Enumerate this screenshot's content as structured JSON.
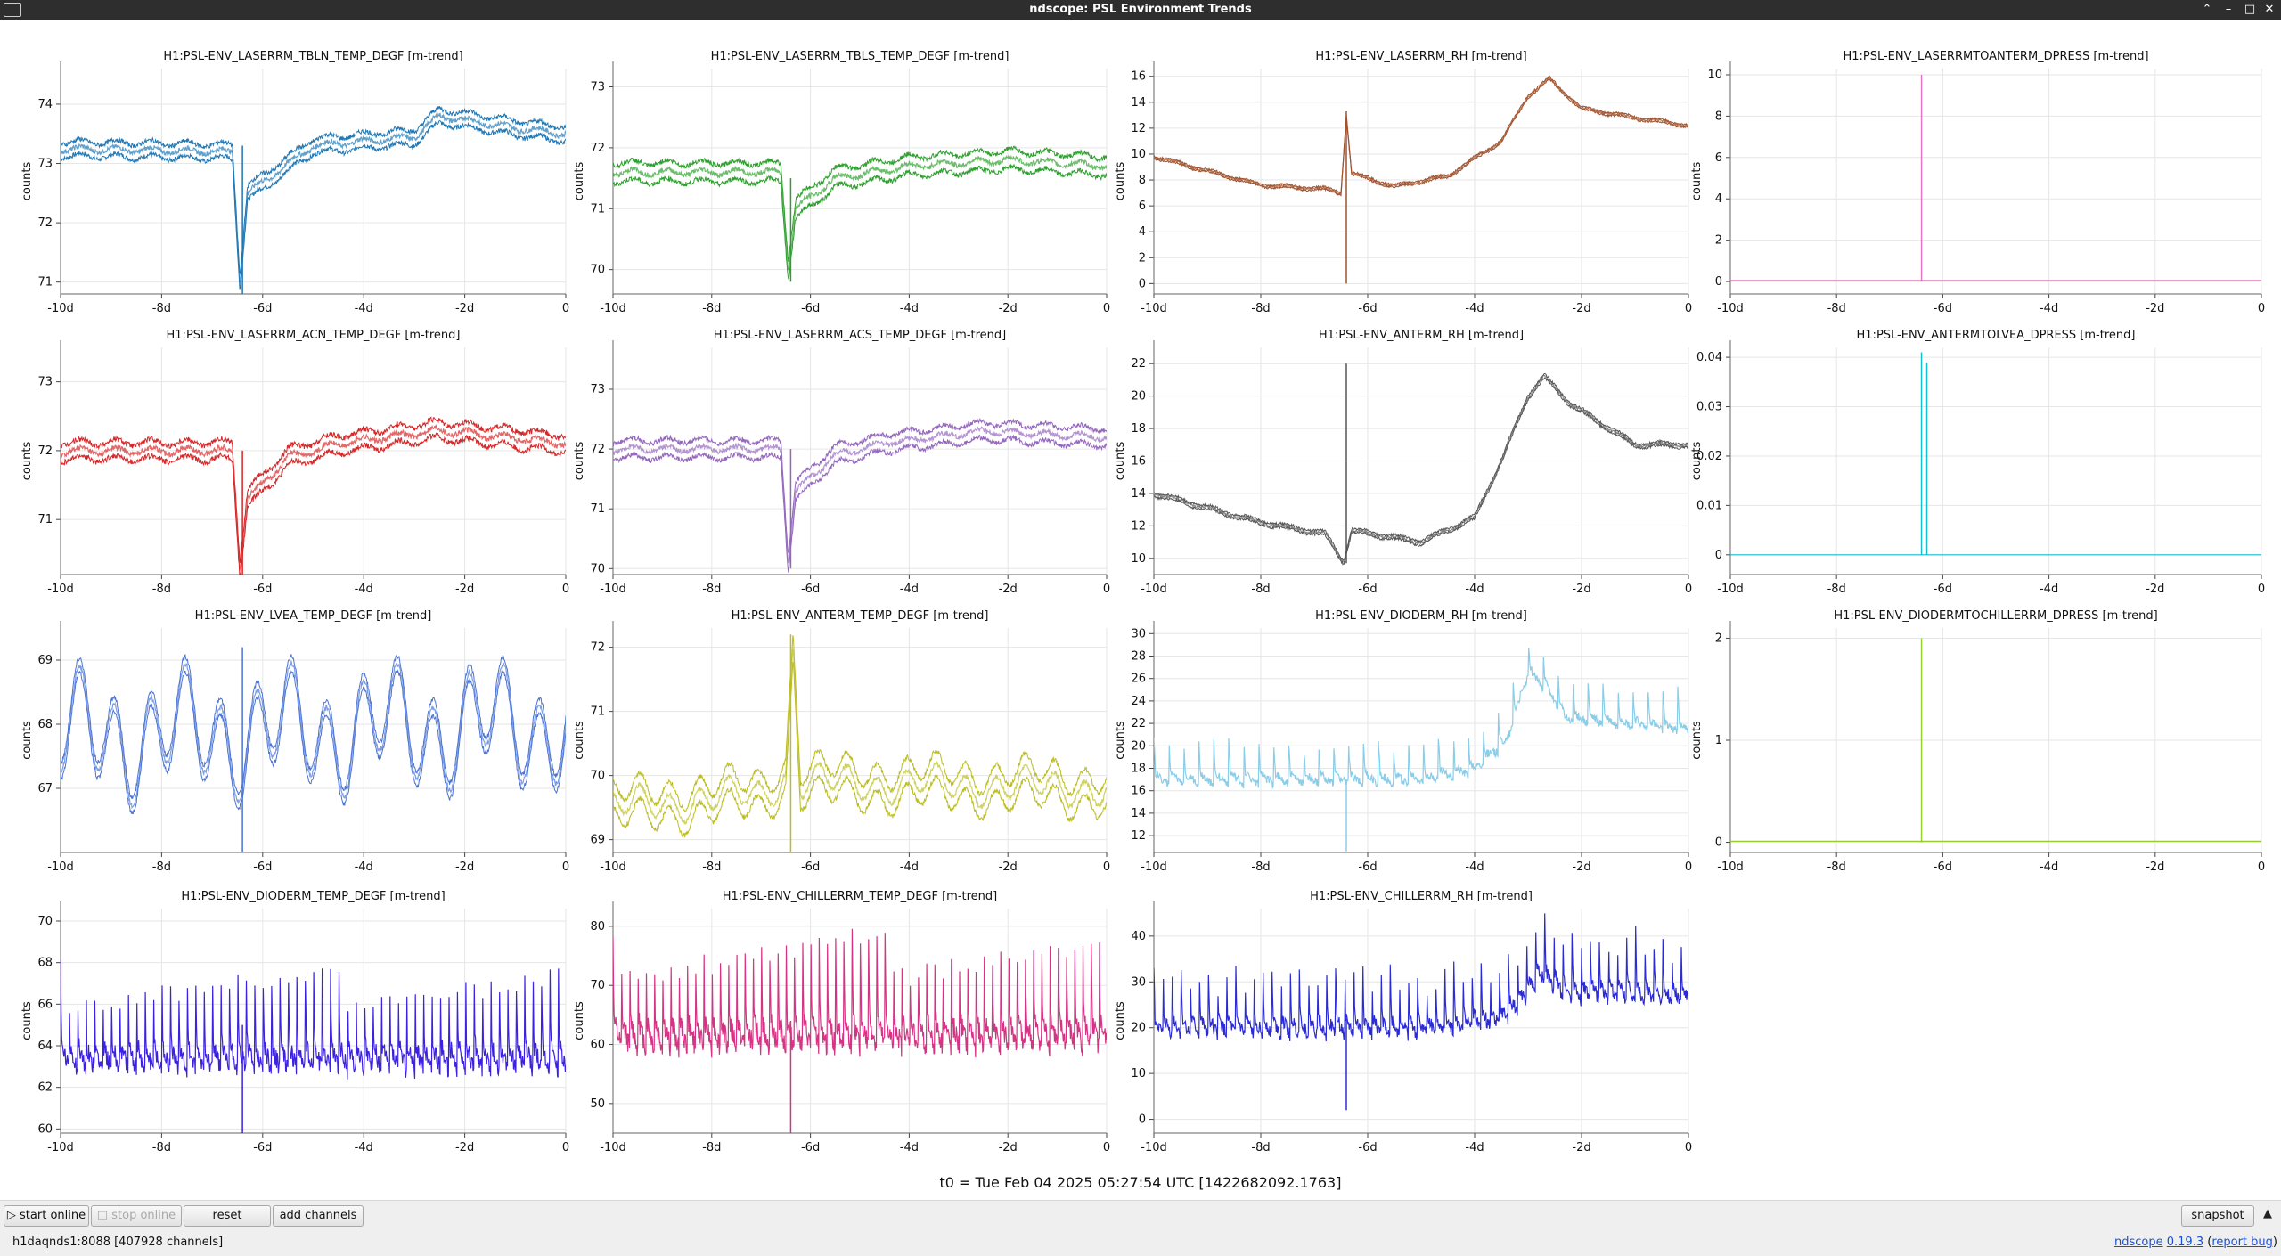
{
  "window": {
    "title": "ndscope: PSL Environment Trends"
  },
  "t0_label": "t0 = Tue Feb 04 2025 05:27:54 UTC [1422682092.1763]",
  "buttons": {
    "start_online": "start online",
    "stop_online": "stop online",
    "reset": "reset",
    "add_channels": "add channels",
    "snapshot": "snapshot"
  },
  "status": {
    "server": "h1daqnds1:8088  [407928 channels]",
    "app": "ndscope",
    "version": "0.19.3",
    "report": "report bug"
  },
  "ylabel": "counts",
  "x_ticks": [
    "-10d",
    "-8d",
    "-6d",
    "-4d",
    "-2d",
    "0"
  ],
  "glitch_at": -6.4,
  "plots": [
    {
      "title": "H1:PSL-ENV_LASERRM_TBLN_TEMP_DEGF [m-trend]",
      "color": "#1f77b4",
      "ylim": [
        70.8,
        74.6
      ],
      "yticks": [
        71,
        72,
        73,
        74
      ],
      "style": "band",
      "base": [
        [
          -10,
          73.25
        ],
        [
          -6.6,
          73.2
        ],
        [
          -6.45,
          71.0
        ],
        [
          -6.3,
          72.5
        ],
        [
          -5,
          73.3
        ],
        [
          -3,
          73.45
        ],
        [
          -2.5,
          73.8
        ],
        [
          -1,
          73.6
        ],
        [
          0,
          73.5
        ]
      ],
      "amp": 0.12,
      "wobble": 0.08,
      "spike": [
        70.5,
        73.3
      ]
    },
    {
      "title": "H1:PSL-ENV_LASERRM_TBLS_TEMP_DEGF [m-trend]",
      "color": "#2ca02c",
      "ylim": [
        69.6,
        73.3
      ],
      "yticks": [
        70,
        71,
        72,
        73
      ],
      "style": "band",
      "base": [
        [
          -10,
          71.6
        ],
        [
          -6.6,
          71.6
        ],
        [
          -6.45,
          70.0
        ],
        [
          -6.3,
          71.0
        ],
        [
          -5.5,
          71.5
        ],
        [
          -4,
          71.7
        ],
        [
          -2,
          71.8
        ],
        [
          0,
          71.7
        ]
      ],
      "amp": 0.15,
      "wobble": 0.08,
      "spike": [
        69.8,
        71.5
      ]
    },
    {
      "title": "H1:PSL-ENV_LASERRM_RH [m-trend]",
      "color": "#a0522d",
      "ylim": [
        -0.8,
        16.6
      ],
      "yticks": [
        0,
        2,
        4,
        6,
        8,
        10,
        12,
        14,
        16
      ],
      "style": "band",
      "base": [
        [
          -10,
          9.8
        ],
        [
          -8,
          7.6
        ],
        [
          -6.8,
          7.3
        ],
        [
          -6.5,
          7.0
        ],
        [
          -6.4,
          13.0
        ],
        [
          -6.3,
          8.5
        ],
        [
          -5.5,
          7.5
        ],
        [
          -4.5,
          8.3
        ],
        [
          -3.5,
          11.0
        ],
        [
          -3.0,
          14.5
        ],
        [
          -2.6,
          15.8
        ],
        [
          -2,
          13.5
        ],
        [
          -1,
          12.8
        ],
        [
          0,
          12.2
        ]
      ],
      "amp": 0.1,
      "wobble": 0.15,
      "spike": [
        0,
        13.3
      ]
    },
    {
      "title": "H1:PSL-ENV_LASERRMTOANTERM_DPRESS [m-trend]",
      "color": "#e377c2",
      "ylim": [
        -0.6,
        10.3
      ],
      "yticks": [
        0,
        2,
        4,
        6,
        8,
        10
      ],
      "style": "flat",
      "base": [
        [
          -10,
          0.05
        ],
        [
          0,
          0.05
        ]
      ],
      "amp": 0,
      "wobble": 0.0,
      "spike": [
        0,
        10.0
      ]
    },
    {
      "title": "H1:PSL-ENV_LASERRM_ACN_TEMP_DEGF [m-trend]",
      "color": "#d62728",
      "ylim": [
        70.2,
        73.5
      ],
      "yticks": [
        71,
        72,
        73
      ],
      "style": "band",
      "base": [
        [
          -10,
          72.0
        ],
        [
          -6.6,
          72.0
        ],
        [
          -6.45,
          70.3
        ],
        [
          -6.3,
          71.3
        ],
        [
          -5.5,
          71.9
        ],
        [
          -4.5,
          72.1
        ],
        [
          -2.5,
          72.3
        ],
        [
          0,
          72.1
        ]
      ],
      "amp": 0.12,
      "wobble": 0.08,
      "spike": [
        70.2,
        72.0
      ]
    },
    {
      "title": "H1:PSL-ENV_LASERRM_ACS_TEMP_DEGF [m-trend]",
      "color": "#9467bd",
      "ylim": [
        69.9,
        73.7
      ],
      "yticks": [
        70,
        71,
        72,
        73
      ],
      "style": "band",
      "base": [
        [
          -10,
          72.0
        ],
        [
          -6.6,
          72.0
        ],
        [
          -6.45,
          70.1
        ],
        [
          -6.3,
          71.3
        ],
        [
          -5.5,
          71.9
        ],
        [
          -4.5,
          72.1
        ],
        [
          -2.5,
          72.3
        ],
        [
          0,
          72.2
        ]
      ],
      "amp": 0.14,
      "wobble": 0.08,
      "spike": [
        70.0,
        72.0
      ]
    },
    {
      "title": "H1:PSL-ENV_ANTERM_RH [m-trend]",
      "color": "#555555",
      "ylim": [
        9.0,
        23.0
      ],
      "yticks": [
        10,
        12,
        14,
        16,
        18,
        20,
        22
      ],
      "style": "band",
      "base": [
        [
          -10,
          14.0
        ],
        [
          -8,
          12.2
        ],
        [
          -6.8,
          11.5
        ],
        [
          -6.45,
          9.8
        ],
        [
          -6.3,
          11.7
        ],
        [
          -5,
          11.0
        ],
        [
          -4,
          12.5
        ],
        [
          -3.5,
          16.0
        ],
        [
          -3.0,
          20.0
        ],
        [
          -2.7,
          21.2
        ],
        [
          -2.2,
          19.5
        ],
        [
          -1,
          17.0
        ],
        [
          0,
          17.0
        ]
      ],
      "amp": 0.12,
      "wobble": 0.15,
      "spike": [
        9.7,
        22.0
      ]
    },
    {
      "title": "H1:PSL-ENV_ANTERMTOLVEA_DPRESS [m-trend]",
      "color": "#17becf",
      "ylim": [
        -0.004,
        0.042
      ],
      "yticks": [
        0,
        0.01,
        0.02,
        0.03,
        0.04
      ],
      "style": "flat",
      "base": [
        [
          -10,
          0.0
        ],
        [
          0,
          0.0
        ]
      ],
      "amp": 0,
      "wobble": 0.0,
      "spike": [
        0,
        0.041
      ],
      "spike2": true
    },
    {
      "title": "H1:PSL-ENV_LVEA_TEMP_DEGF [m-trend]",
      "color": "#4a74d4",
      "ylim": [
        66.0,
        69.5
      ],
      "yticks": [
        67,
        68,
        69
      ],
      "style": "osc",
      "base": [
        [
          -10,
          67.8
        ],
        [
          0,
          68.0
        ]
      ],
      "amp": 0.12,
      "wobble": 1.0,
      "period": 0.7,
      "spike": [
        66.0,
        69.2
      ]
    },
    {
      "title": "H1:PSL-ENV_ANTERM_TEMP_DEGF [m-trend]",
      "color": "#bcbd22",
      "ylim": [
        68.8,
        72.3
      ],
      "yticks": [
        69,
        70,
        71,
        72
      ],
      "style": "osc",
      "base": [
        [
          -10,
          69.5
        ],
        [
          -7,
          69.7
        ],
        [
          -6.5,
          70.0
        ],
        [
          -6.35,
          72.0
        ],
        [
          -6.2,
          69.9
        ],
        [
          0,
          69.8
        ]
      ],
      "amp": 0.2,
      "wobble": 0.3,
      "period": 0.6,
      "spike": [
        68.8,
        72.2
      ]
    },
    {
      "title": "H1:PSL-ENV_DIODERM_RH [m-trend]",
      "color": "#89cde8",
      "ylim": [
        10.5,
        30.5
      ],
      "yticks": [
        12,
        14,
        16,
        18,
        20,
        22,
        24,
        26,
        28,
        30
      ],
      "style": "saw",
      "base": [
        [
          -10,
          17.5
        ],
        [
          -5,
          17.5
        ],
        [
          -4.0,
          18.5
        ],
        [
          -3.4,
          21.0
        ],
        [
          -3.0,
          27.0
        ],
        [
          -2.7,
          26.0
        ],
        [
          -2.3,
          23.0
        ],
        [
          0,
          22.0
        ]
      ],
      "amp": 0,
      "wobble": 3.0,
      "period": 0.28,
      "spike": [
        10.6,
        17.0
      ]
    },
    {
      "title": "H1:PSL-ENV_DIODERMTOCHILLERRM_DPRESS [m-trend]",
      "color": "#9acd32",
      "ylim": [
        -0.1,
        2.1
      ],
      "yticks": [
        0,
        1,
        2
      ],
      "style": "flat",
      "base": [
        [
          -10,
          0.01
        ],
        [
          0,
          0.01
        ]
      ],
      "amp": 0,
      "wobble": 0.0,
      "spike": [
        0,
        2.0
      ]
    },
    {
      "title": "H1:PSL-ENV_DIODERM_TEMP_DEGF [m-trend]",
      "color": "#3b22e0",
      "ylim": [
        59.8,
        70.6
      ],
      "yticks": [
        60,
        62,
        64,
        66,
        68,
        70
      ],
      "style": "saw",
      "base": [
        [
          -10,
          64.0
        ],
        [
          0,
          64.0
        ]
      ],
      "amp": 0,
      "wobble": 3.8,
      "period": 0.167,
      "spike": [
        59.8,
        65.0
      ]
    },
    {
      "title": "H1:PSL-ENV_CHILLERRM_TEMP_DEGF [m-trend]",
      "color": "#d63384",
      "ylim": [
        45.0,
        83.0
      ],
      "yticks": [
        50,
        60,
        70,
        80
      ],
      "style": "saw",
      "base": [
        [
          -10,
          64.0
        ],
        [
          0,
          64.0
        ]
      ],
      "amp": 0,
      "wobble": 15.0,
      "period": 0.167,
      "spike": [
        45.0,
        64.0
      ]
    },
    {
      "title": "H1:PSL-ENV_CHILLERRM_RH [m-trend]",
      "color": "#2b2bd6",
      "ylim": [
        -3.0,
        46.0
      ],
      "yticks": [
        0,
        10,
        20,
        30,
        40
      ],
      "style": "saw",
      "base": [
        [
          -10,
          22.0
        ],
        [
          -5,
          22.0
        ],
        [
          -3.5,
          24.0
        ],
        [
          -3.0,
          30.0
        ],
        [
          -2.8,
          34.0
        ],
        [
          -2.3,
          30.0
        ],
        [
          0,
          29.0
        ]
      ],
      "amp": 0,
      "wobble": 12.0,
      "period": 0.17,
      "spike": [
        2.0,
        22.0
      ]
    }
  ]
}
